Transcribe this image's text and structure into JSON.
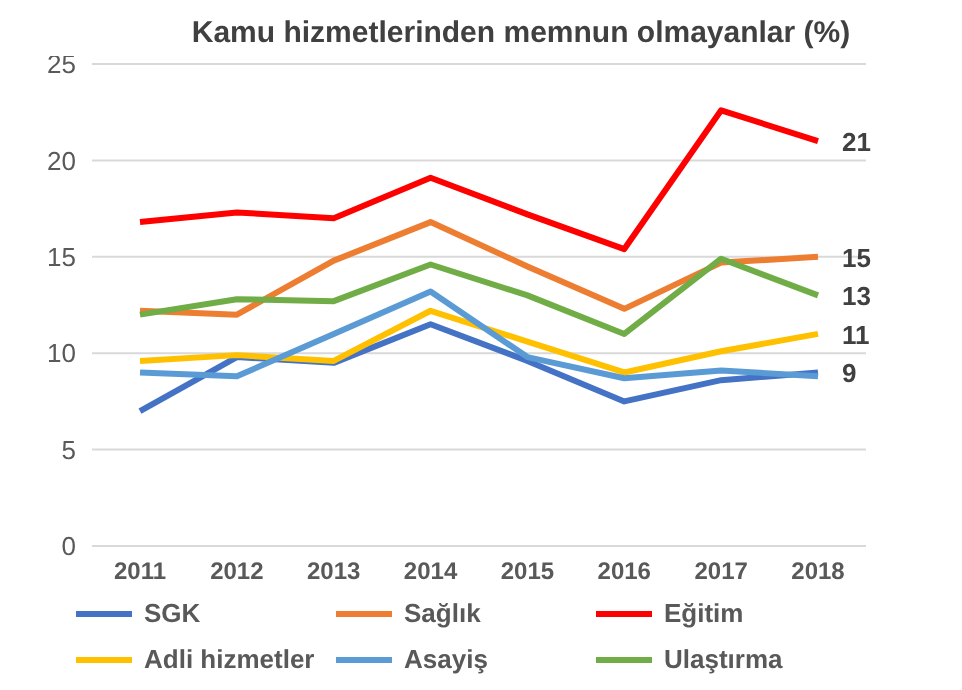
{
  "chart_data": {
    "type": "line",
    "title": "Kamu hizmetlerinden  memnun olmayanlar  (%)",
    "categories": [
      "2011",
      "2012",
      "2013",
      "2014",
      "2015",
      "2016",
      "2017",
      "2018"
    ],
    "series": [
      {
        "name": "SGK",
        "color": "#4472c4",
        "values": [
          7.0,
          9.8,
          9.5,
          11.5,
          9.6,
          7.5,
          8.6,
          9
        ],
        "value_labels": [
          null,
          null,
          null,
          null,
          null,
          null,
          null,
          "9"
        ]
      },
      {
        "name": "Sağlık",
        "color": "#ed7d31",
        "values": [
          12.2,
          12.0,
          14.8,
          16.8,
          14.5,
          12.3,
          14.7,
          15
        ],
        "value_labels": [
          null,
          null,
          null,
          null,
          null,
          null,
          null,
          "15"
        ]
      },
      {
        "name": "Eğitim",
        "color": "#ff0000",
        "values": [
          16.8,
          17.3,
          17.0,
          19.1,
          17.2,
          15.4,
          22.6,
          21
        ],
        "value_labels": [
          null,
          null,
          null,
          null,
          null,
          null,
          null,
          "21"
        ]
      },
      {
        "name": "Adli hizmetler",
        "color": "#ffc000",
        "values": [
          9.6,
          9.9,
          9.6,
          12.2,
          10.6,
          9.0,
          10.1,
          11
        ],
        "value_labels": [
          null,
          null,
          null,
          null,
          null,
          null,
          null,
          "11"
        ]
      },
      {
        "name": "Asayiş",
        "color": "#5b9bd5",
        "values": [
          9.0,
          8.8,
          11.0,
          13.2,
          9.8,
          8.7,
          9.1,
          8.8
        ],
        "value_labels": [
          null,
          null,
          null,
          null,
          null,
          null,
          null,
          null
        ]
      },
      {
        "name": "Ulaştırma",
        "color": "#70ad47",
        "values": [
          12.0,
          12.8,
          12.7,
          14.6,
          13.0,
          11.0,
          14.9,
          13
        ],
        "value_labels": [
          null,
          null,
          null,
          null,
          null,
          null,
          null,
          "13"
        ]
      }
    ],
    "ylim": [
      0,
      25
    ],
    "yticks": [
      0,
      5,
      10,
      15,
      20,
      25
    ],
    "grid": "y",
    "legend": "bottom",
    "marker": "none",
    "line_style": "solid"
  }
}
